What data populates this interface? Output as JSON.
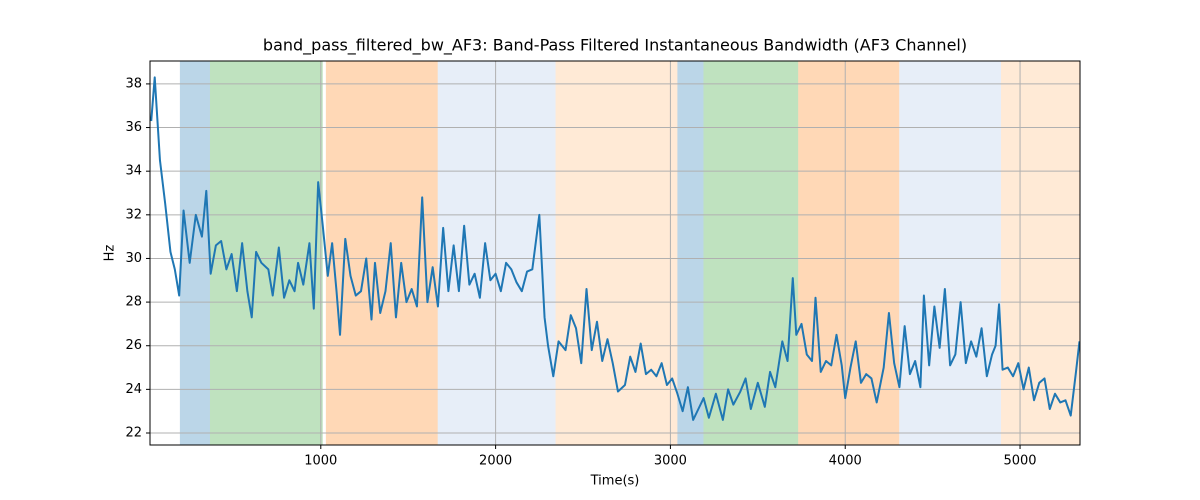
{
  "chart_data": {
    "type": "line",
    "title": "band_pass_filtered_bw_AF3: Band-Pass Filtered Instantaneous Bandwidth (AF3 Channel)",
    "xlabel": "Time(s)",
    "ylabel": "Hz",
    "xlim": [
      23,
      5343
    ],
    "ylim": [
      21.45,
      39.05
    ],
    "xticks": [
      1000,
      2000,
      3000,
      4000,
      5000
    ],
    "yticks": [
      22,
      24,
      26,
      28,
      30,
      32,
      34,
      36,
      38
    ],
    "grid": true,
    "spans": [
      {
        "xlim": [
          194,
          366
        ],
        "color": "#1f77b4"
      },
      {
        "xlim": [
          366,
          1011
        ],
        "color": "#2ca02c"
      },
      {
        "xlim": [
          1029,
          1669
        ],
        "color": "#ff7f0e"
      },
      {
        "xlim": [
          1669,
          2343
        ],
        "color": "#aec7e8"
      },
      {
        "xlim": [
          2343,
          3040
        ],
        "color": "#ffbb78"
      },
      {
        "xlim": [
          3040,
          3189
        ],
        "color": "#1f77b4"
      },
      {
        "xlim": [
          3189,
          3731
        ],
        "color": "#2ca02c"
      },
      {
        "xlim": [
          3731,
          4309
        ],
        "color": "#ff7f0e"
      },
      {
        "xlim": [
          4309,
          4891
        ],
        "color": "#aec7e8"
      },
      {
        "xlim": [
          4891,
          5343
        ],
        "color": "#ffbb78"
      }
    ],
    "x": [
      30,
      50,
      80,
      110,
      140,
      165,
      190,
      215,
      250,
      285,
      320,
      345,
      370,
      400,
      430,
      460,
      490,
      520,
      550,
      580,
      605,
      630,
      660,
      700,
      725,
      760,
      790,
      820,
      850,
      870,
      900,
      935,
      960,
      985,
      1010,
      1040,
      1065,
      1090,
      1110,
      1140,
      1170,
      1200,
      1230,
      1260,
      1290,
      1310,
      1340,
      1370,
      1400,
      1430,
      1460,
      1490,
      1520,
      1550,
      1580,
      1610,
      1640,
      1670,
      1700,
      1730,
      1760,
      1790,
      1820,
      1850,
      1880,
      1910,
      1940,
      1970,
      2000,
      2030,
      2060,
      2090,
      2120,
      2150,
      2180,
      2210,
      2250,
      2280,
      2300,
      2330,
      2360,
      2400,
      2430,
      2460,
      2490,
      2520,
      2550,
      2580,
      2610,
      2640,
      2670,
      2700,
      2740,
      2770,
      2800,
      2830,
      2860,
      2890,
      2920,
      2950,
      2980,
      3010,
      3040,
      3070,
      3100,
      3130,
      3160,
      3190,
      3220,
      3260,
      3300,
      3330,
      3360,
      3400,
      3430,
      3460,
      3500,
      3540,
      3570,
      3600,
      3640,
      3670,
      3700,
      3720,
      3750,
      3780,
      3810,
      3830,
      3860,
      3890,
      3920,
      3950,
      3980,
      4000,
      4030,
      4060,
      4090,
      4120,
      4150,
      4180,
      4220,
      4250,
      4280,
      4310,
      4340,
      4370,
      4400,
      4430,
      4450,
      4480,
      4510,
      4540,
      4570,
      4600,
      4630,
      4660,
      4690,
      4720,
      4750,
      4780,
      4810,
      4840,
      4860,
      4880,
      4900,
      4930,
      4960,
      4990,
      5020,
      5050,
      5080,
      5110,
      5140,
      5170,
      5200,
      5230,
      5260,
      5290,
      5320,
      5340
    ],
    "series": [
      {
        "name": "band_pass_filtered_bw_AF3",
        "color": "#1f77b4",
        "values": [
          36.3,
          38.3,
          34.5,
          32.5,
          30.3,
          29.5,
          28.3,
          32.2,
          29.8,
          32,
          31,
          33.1,
          29.3,
          30.6,
          30.8,
          29.5,
          30.2,
          28.5,
          30.7,
          28.5,
          27.3,
          30.3,
          29.8,
          29.5,
          28.3,
          30.5,
          28.2,
          29,
          28.5,
          29.8,
          28.8,
          30.7,
          27.7,
          33.5,
          31.6,
          29.2,
          30.7,
          28.5,
          26.5,
          30.9,
          29.2,
          28.3,
          28.5,
          30,
          27.2,
          29.8,
          27.5,
          28.5,
          30.7,
          27.3,
          29.8,
          28,
          28.6,
          27.8,
          32.8,
          28,
          29.6,
          27.8,
          31.4,
          28.5,
          30.6,
          28.5,
          31.5,
          28.8,
          29.3,
          28.2,
          30.7,
          29,
          29.3,
          28.5,
          29.8,
          29.5,
          28.9,
          28.5,
          29.4,
          29.5,
          32,
          27.3,
          26,
          24.6,
          26.2,
          25.8,
          27.4,
          26.8,
          25.2,
          28.6,
          25.8,
          27.1,
          25.3,
          26.3,
          25.2,
          23.9,
          24.2,
          25.5,
          24.8,
          26.1,
          24.7,
          24.9,
          24.6,
          25.2,
          24.2,
          24.5,
          23.8,
          23,
          24.1,
          22.6,
          23.1,
          23.6,
          22.7,
          23.8,
          22.6,
          24,
          23.3,
          23.9,
          24.5,
          23.1,
          24.3,
          23.2,
          24.8,
          24.1,
          26.2,
          25.3,
          29.1,
          26.5,
          27,
          25.6,
          25.3,
          28.2,
          24.8,
          25.3,
          25.1,
          26.5,
          25.1,
          23.6,
          25,
          26.2,
          24.3,
          24.7,
          24.5,
          23.4,
          25,
          27.5,
          25.2,
          24.1,
          26.9,
          24.7,
          25.3,
          24.1,
          28.3,
          25.1,
          27.8,
          25.9,
          28.6,
          25.1,
          25.6,
          28,
          25.2,
          26.2,
          25.5,
          26.8,
          24.6,
          25.6,
          26,
          27.9,
          24.9,
          25,
          24.6,
          25.2,
          24,
          25,
          23.5,
          24.3,
          24.5,
          23.1,
          23.8,
          23.4,
          23.5,
          22.8,
          24.8,
          26.2
        ]
      }
    ]
  }
}
